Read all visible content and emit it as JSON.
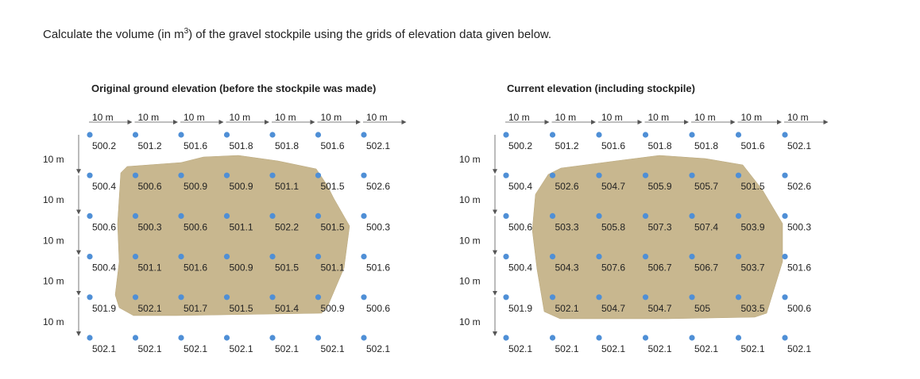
{
  "question": {
    "before": "Calculate the volume (in m",
    "superscript": "3",
    "after": ") of the gravel stockpile using the grids of elevation data given below."
  },
  "spacing_label": "10 m",
  "colors": {
    "dot": "#4f8fd6",
    "stockpile": "#c8b78f",
    "text": "#222222"
  },
  "grids": [
    {
      "title": "Original ground elevation (before the stockpile was made)",
      "rows": [
        [
          "500.2",
          "501.2",
          "501.6",
          "501.8",
          "501.8",
          "501.6",
          "502.1"
        ],
        [
          "500.4",
          "500.6",
          "500.9",
          "500.9",
          "501.1",
          "501.5",
          "502.6"
        ],
        [
          "500.6",
          "500.3",
          "500.6",
          "501.1",
          "502.2",
          "501.5",
          "500.3"
        ],
        [
          "500.4",
          "501.1",
          "501.6",
          "500.9",
          "501.5",
          "501.1",
          "501.6"
        ],
        [
          "501.9",
          "502.1",
          "501.7",
          "501.5",
          "501.4",
          "500.9",
          "500.6"
        ],
        [
          "502.1",
          "502.1",
          "502.1",
          "502.1",
          "502.1",
          "502.1",
          "502.1"
        ]
      ]
    },
    {
      "title": "Current elevation (including stockpile)",
      "rows": [
        [
          "500.2",
          "501.2",
          "501.6",
          "501.8",
          "501.8",
          "501.6",
          "502.1"
        ],
        [
          "500.4",
          "502.6",
          "504.7",
          "505.9",
          "505.7",
          "501.5",
          "502.6"
        ],
        [
          "500.6",
          "503.3",
          "505.8",
          "507.3",
          "507.4",
          "503.9",
          "500.3"
        ],
        [
          "500.4",
          "504.3",
          "507.6",
          "506.7",
          "506.7",
          "503.7",
          "501.6"
        ],
        [
          "501.9",
          "502.1",
          "504.7",
          "504.7",
          "505",
          "503.5",
          "500.6"
        ],
        [
          "502.1",
          "502.1",
          "502.1",
          "502.1",
          "502.1",
          "502.1",
          "502.1"
        ]
      ]
    }
  ]
}
